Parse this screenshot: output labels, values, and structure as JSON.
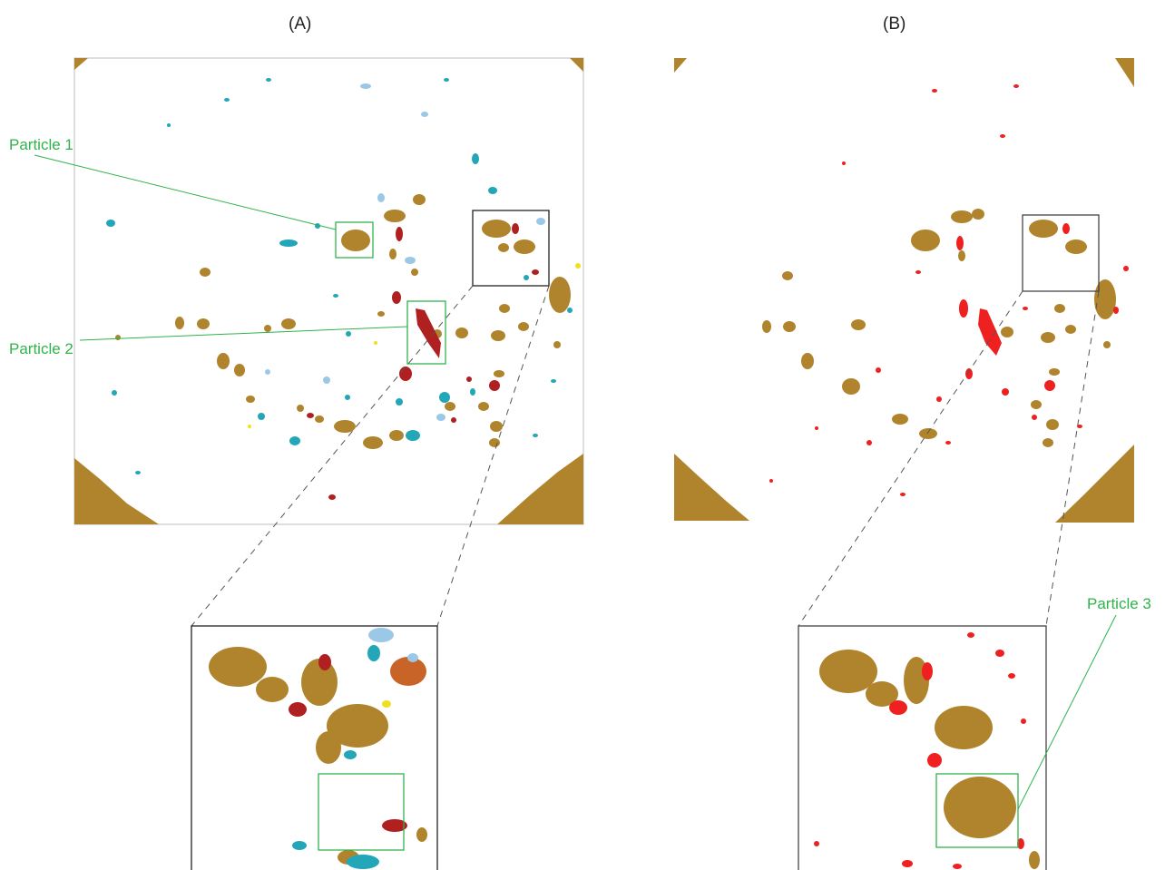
{
  "panels": {
    "a_label": "(A)",
    "b_label": "(B)"
  },
  "callouts": {
    "particle_1": "Particle 1",
    "particle_2": "Particle 2",
    "particle_3": "Particle 3"
  },
  "colors": {
    "gold": "#b0842c",
    "dark_red": "#b02020",
    "red": "#ee2020",
    "teal": "#22a6b8",
    "light_blue": "#9cc8e8",
    "orange": "#c86428",
    "yellow": "#f0e020",
    "green": "#2fb34a"
  }
}
